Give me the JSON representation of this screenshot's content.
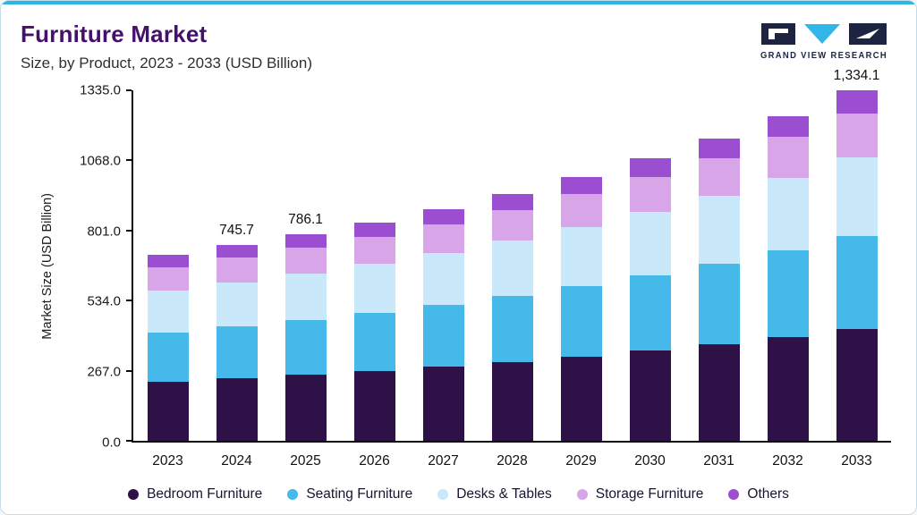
{
  "header": {
    "title": "Furniture Market",
    "subtitle": "Size, by Product, 2023 - 2033 (USD Billion)",
    "logo_text": "GRAND VIEW RESEARCH"
  },
  "chart_data": {
    "type": "bar",
    "stacked": true,
    "title": "Furniture Market Size, by Product, 2023 - 2033 (USD Billion)",
    "xlabel": "",
    "ylabel": "Market Size (USD Billion)",
    "ylim": [
      0,
      1335
    ],
    "yticks": [
      0.0,
      267.0,
      534.0,
      801.0,
      1068.0,
      1335.0
    ],
    "ytick_labels": [
      "0.0",
      "267.0",
      "534.0",
      "801.0",
      "1068.0",
      "1335.0"
    ],
    "grid": false,
    "legend_position": "bottom",
    "categories": [
      "2023",
      "2024",
      "2025",
      "2026",
      "2027",
      "2028",
      "2029",
      "2030",
      "2031",
      "2032",
      "2033"
    ],
    "series": [
      {
        "name": "Bedroom Furniture",
        "color": "#2e1247",
        "values": [
          226.3,
          238.6,
          251.6,
          266.1,
          282.7,
          301.0,
          321.5,
          344.0,
          368.8,
          396.1,
          426.9
        ]
      },
      {
        "name": "Seating Furniture",
        "color": "#45b9ea",
        "values": [
          187.4,
          197.6,
          208.3,
          220.4,
          234.1,
          249.3,
          266.2,
          284.9,
          305.4,
          328.0,
          353.5
        ]
      },
      {
        "name": "Desks & Tables",
        "color": "#c9e9fb",
        "values": [
          159.1,
          167.8,
          176.9,
          187.1,
          198.7,
          211.7,
          226.1,
          241.9,
          259.3,
          278.5,
          300.2
        ]
      },
      {
        "name": "Storage Furniture",
        "color": "#d7a5e8",
        "values": [
          88.4,
          93.2,
          98.3,
          104.0,
          110.4,
          117.6,
          125.6,
          134.4,
          144.1,
          154.7,
          166.8
        ]
      },
      {
        "name": "Others",
        "color": "#9b4fd0",
        "values": [
          46.0,
          48.5,
          51.1,
          54.1,
          57.4,
          61.1,
          65.3,
          69.9,
          74.9,
          80.4,
          86.7
        ]
      }
    ],
    "total_labels": {
      "2024": "745.7",
      "2025": "786.1",
      "2033": "1,334.1"
    }
  },
  "colors": {
    "accent_top": "#2ab5e3",
    "title": "#45106b",
    "logo_navy": "#1d2442",
    "logo_cyan": "#30b6e8",
    "axis": "#0b0b0b"
  }
}
